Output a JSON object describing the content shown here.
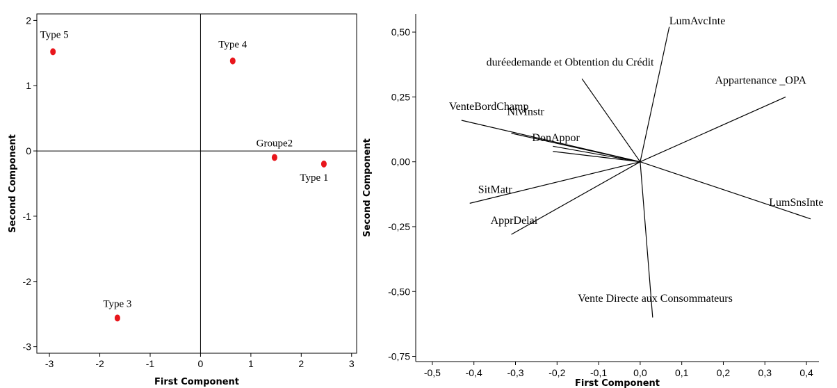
{
  "chart_data": [
    {
      "type": "scatter",
      "xlabel": "First Component",
      "ylabel": "Second Component",
      "xlim": [
        -3.25,
        3.1
      ],
      "ylim": [
        -3.1,
        2.1
      ],
      "xticks": [
        -3,
        -2,
        -1,
        0,
        1,
        2,
        3
      ],
      "yticks": [
        -3,
        -2,
        -1,
        0,
        1,
        2
      ],
      "reference_lines": {
        "x": 0,
        "y": 0
      },
      "marker_color": "#e8161c",
      "points": [
        {
          "label": "Type 5",
          "x": -2.93,
          "y": 1.52
        },
        {
          "label": "Type 4",
          "x": 0.64,
          "y": 1.38
        },
        {
          "label": "Groupe2",
          "x": 1.47,
          "y": -0.1
        },
        {
          "label": "Type 1",
          "x": 2.45,
          "y": -0.2
        },
        {
          "label": "Type 3",
          "x": -1.65,
          "y": -2.56
        }
      ]
    },
    {
      "type": "line",
      "subtype": "loading-vectors",
      "xlabel": "First Component",
      "ylabel": "Second Component",
      "xlim": [
        -0.54,
        0.43
      ],
      "ylim": [
        -0.77,
        0.57
      ],
      "xticks": [
        "-0,5",
        "-0,4",
        "-0,3",
        "-0,2",
        "-0,1",
        "0,0",
        "0,1",
        "0,2",
        "0,3",
        "0,4"
      ],
      "xtick_values": [
        -0.5,
        -0.4,
        -0.3,
        -0.2,
        -0.1,
        0.0,
        0.1,
        0.2,
        0.3,
        0.4
      ],
      "yticks": [
        "-0,75",
        "-0,50",
        "-0,25",
        "0,00",
        "0,25",
        "0,50"
      ],
      "ytick_values": [
        -0.75,
        -0.5,
        -0.25,
        0.0,
        0.25,
        0.5
      ],
      "vectors": [
        {
          "label": "LumAvcInte",
          "x": 0.07,
          "y": 0.52
        },
        {
          "label": "duréedemande et Obtention du Crédit",
          "x": -0.14,
          "y": 0.32
        },
        {
          "label": "Appartenance _OPA",
          "x": 0.35,
          "y": 0.25
        },
        {
          "label": "VenteBordChamp",
          "x": -0.43,
          "y": 0.16
        },
        {
          "label": "NivInstr",
          "x": -0.31,
          "y": 0.11
        },
        {
          "label": "DonAppor",
          "x": -0.21,
          "y": 0.06
        },
        {
          "label": "",
          "x": -0.21,
          "y": 0.04
        },
        {
          "label": "SitMatr",
          "x": -0.41,
          "y": -0.16
        },
        {
          "label": "ApprDelai",
          "x": -0.31,
          "y": -0.28
        },
        {
          "label": "LumSnsInte",
          "x": 0.41,
          "y": -0.22
        },
        {
          "label": "Vente Directe aux Consommateurs",
          "x": 0.03,
          "y": -0.6
        }
      ]
    }
  ]
}
